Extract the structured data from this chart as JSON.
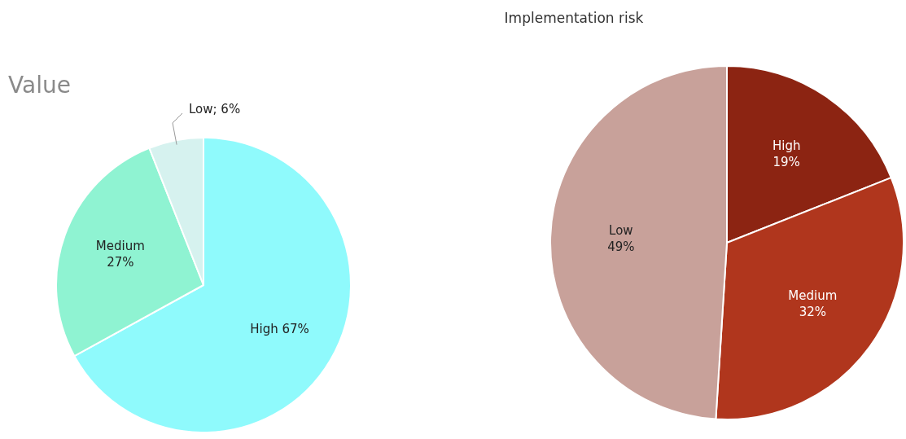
{
  "chart_data": [
    {
      "type": "pie",
      "title": "Value",
      "categories": [
        "High",
        "Medium",
        "Low"
      ],
      "values": [
        67,
        27,
        6
      ],
      "colors": [
        "#8ffafc",
        "#8ff3d2",
        "#d6f2ef"
      ],
      "value_labels": [
        "67%",
        "27%",
        "; 6%"
      ]
    },
    {
      "type": "pie",
      "title": "Implementation risk",
      "categories": [
        "High",
        "Medium",
        "Low"
      ],
      "values": [
        19,
        32,
        49
      ],
      "colors": [
        "#8c2412",
        "#b0361d",
        "#c8a19a"
      ],
      "value_labels": [
        "19%",
        "32%",
        "49%"
      ]
    }
  ]
}
